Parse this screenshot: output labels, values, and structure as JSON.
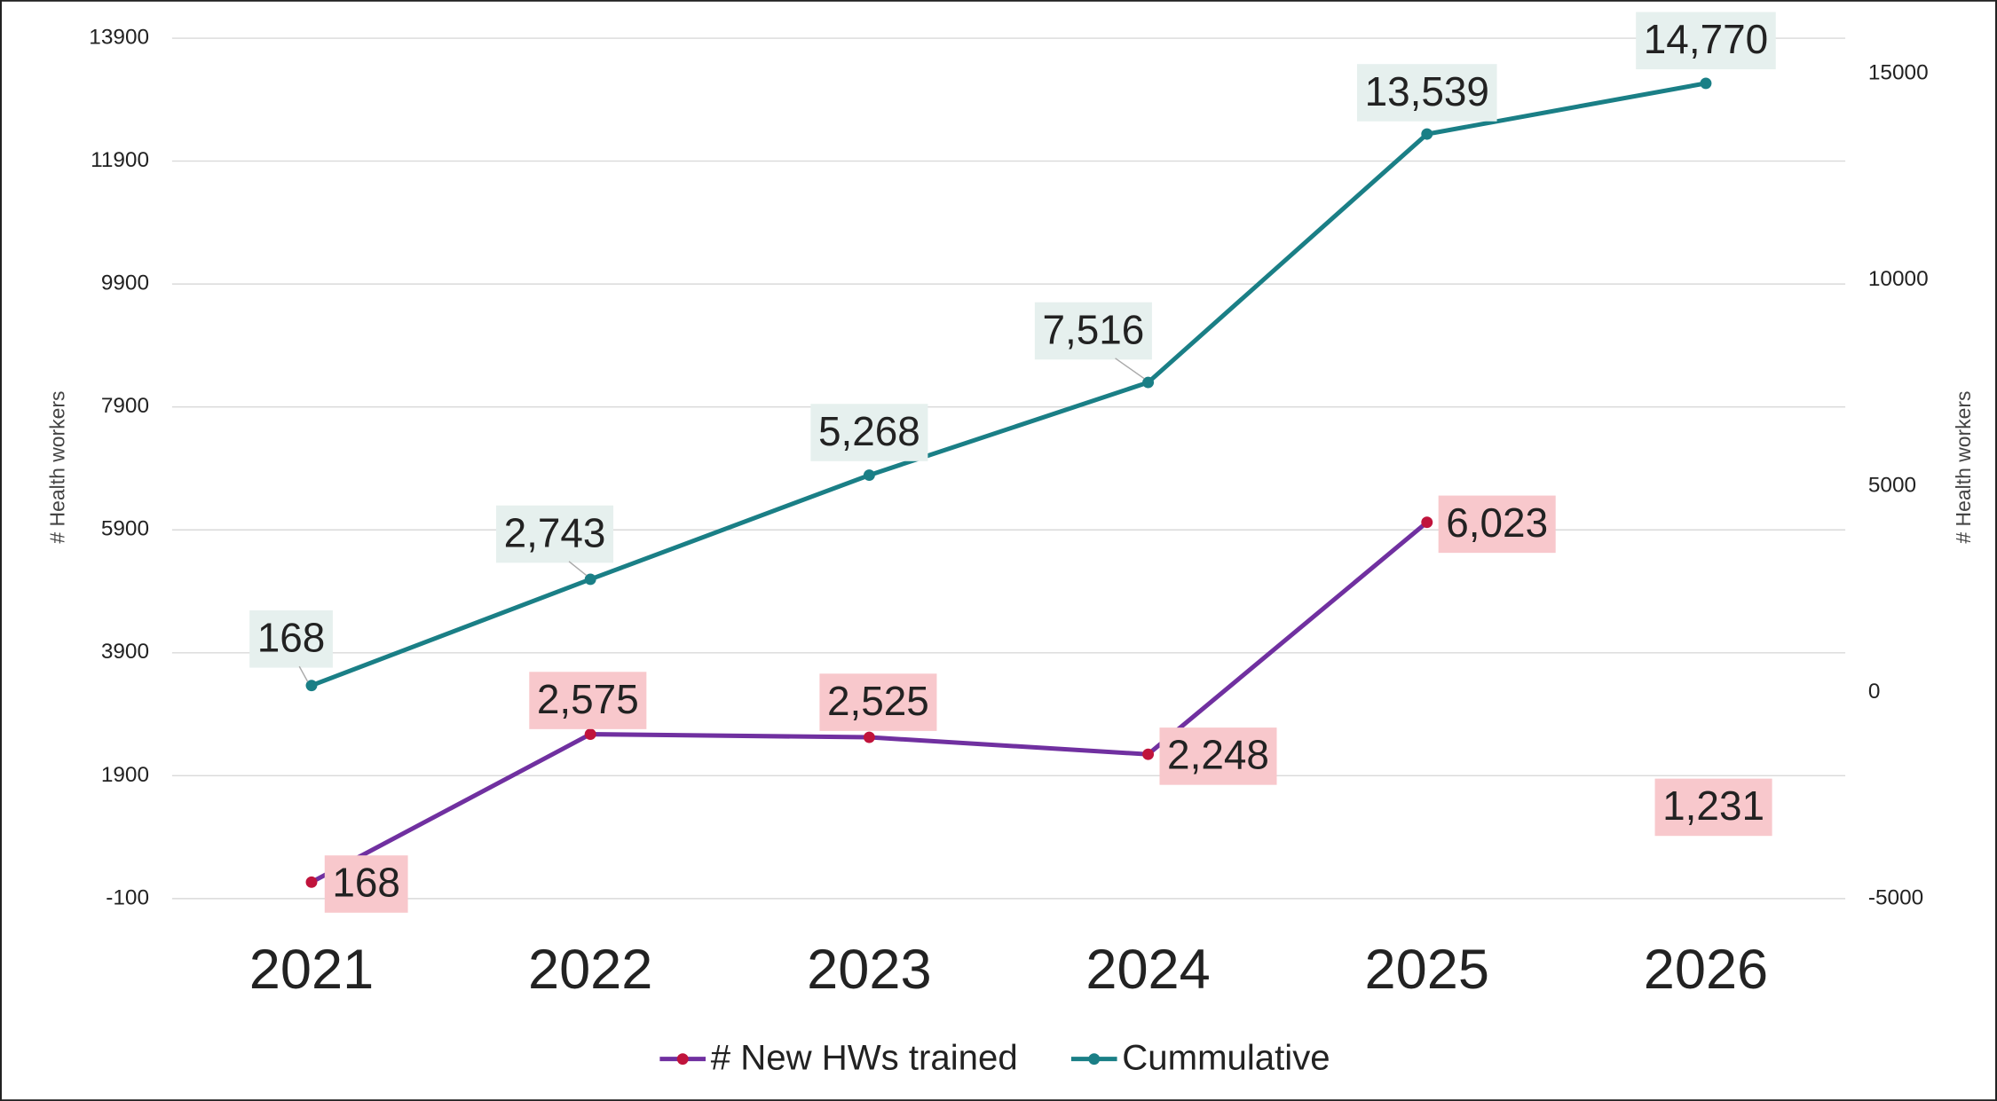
{
  "chart_data": {
    "type": "line",
    "categories": [
      "2021",
      "2022",
      "2023",
      "2024",
      "2025",
      "2026"
    ],
    "ylabel": "# Health workers",
    "y2label": "# Health workers",
    "ylim": [
      -100,
      13900
    ],
    "yticks": [
      -100,
      1900,
      3900,
      5900,
      7900,
      9900,
      11900,
      13900
    ],
    "y2lim": [
      -5000,
      15864
    ],
    "y2ticks": [
      -5000,
      0,
      5000,
      10000,
      15000
    ],
    "grid": true,
    "legend": "bottom",
    "series": [
      {
        "name": "# New HWs trained",
        "color": "#7030a0",
        "marker_color": "#c0143c",
        "label_background": "#f8c8cc",
        "values": [
          168,
          2575,
          2525,
          2248,
          6023,
          1231
        ],
        "value_labels": [
          "168",
          "2,575",
          "2,525",
          "2,248",
          "6,023",
          "1,231"
        ]
      },
      {
        "name": "Cummulative",
        "color": "#1a7f86",
        "marker_color": "#1a7f86",
        "label_background": "#e6f0ee",
        "axis": "y2",
        "values": [
          168,
          2743,
          5268,
          7516,
          13539,
          14770
        ],
        "value_labels": [
          "168",
          "2,743",
          "5,268",
          "7,516",
          "13,539",
          "14,770"
        ]
      }
    ]
  }
}
